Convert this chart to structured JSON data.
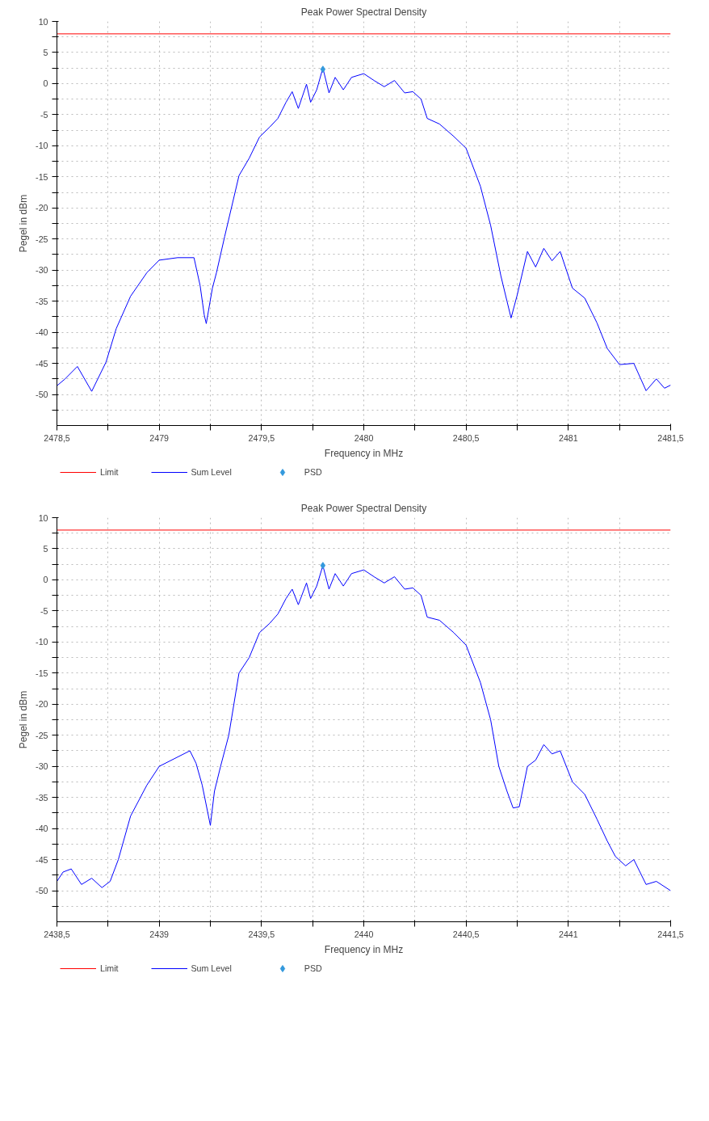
{
  "chart_data": [
    {
      "type": "line",
      "title": "Peak Power Spectral Density",
      "xlabel": "Frequency in MHz",
      "ylabel": "Pegel in dBm",
      "xlim": [
        2478.5,
        2481.5
      ],
      "ylim": [
        -55,
        10
      ],
      "xticks": [
        {
          "value": 2478.5,
          "label": "2478,5"
        },
        {
          "value": 2478.75,
          "label": null
        },
        2479,
        {
          "value": 2479.25,
          "label": null
        },
        {
          "value": 2479.5,
          "label": "2479,5"
        },
        {
          "value": 2479.75,
          "label": null
        },
        2480,
        {
          "value": 2480.25,
          "label": null
        },
        {
          "value": 2480.5,
          "label": "2480,5"
        },
        {
          "value": 2480.75,
          "label": null
        },
        2481,
        {
          "value": 2481.25,
          "label": null
        },
        {
          "value": 2481.5,
          "label": "2481,5"
        }
      ],
      "yticks": [
        10,
        {
          "value": 7.5,
          "label": null
        },
        5,
        {
          "value": 2.5,
          "label": null
        },
        0,
        {
          "value": -2.5,
          "label": null
        },
        -5,
        {
          "value": -7.5,
          "label": null
        },
        -10,
        {
          "value": -12.5,
          "label": null
        },
        -15,
        {
          "value": -17.5,
          "label": null
        },
        -20,
        {
          "value": -22.5,
          "label": null
        },
        -25,
        {
          "value": -27.5,
          "label": null
        },
        -30,
        {
          "value": -32.5,
          "label": null
        },
        -35,
        {
          "value": -37.5,
          "label": null
        },
        -40,
        {
          "value": -42.5,
          "label": null
        },
        -45,
        {
          "value": -47.5,
          "label": null
        },
        -50,
        {
          "value": -52.5,
          "label": null
        }
      ],
      "grid": true,
      "legend": "bottom",
      "series": [
        {
          "name": "Limit",
          "type": "line",
          "color": "#ff0000",
          "x": [
            2478.5,
            2481.5
          ],
          "values": [
            8,
            8
          ]
        },
        {
          "name": "Sum Level",
          "color": "#0000ff",
          "x": [
            2478.5,
            2478.54,
            2478.6,
            2478.67,
            2478.74,
            2478.79,
            2478.86,
            2478.94,
            2479.0,
            2479.09,
            2479.17,
            2479.2,
            2479.22,
            2479.23,
            2479.26,
            2479.28,
            2479.32,
            2479.39,
            2479.44,
            2479.49,
            2479.54,
            2479.58,
            2479.62,
            2479.65,
            2479.68,
            2479.72,
            2479.74,
            2479.77,
            2479.8,
            2479.83,
            2479.86,
            2479.9,
            2479.94,
            2480.0,
            2480.05,
            2480.1,
            2480.15,
            2480.2,
            2480.24,
            2480.28,
            2480.31,
            2480.37,
            2480.44,
            2480.5,
            2480.57,
            2480.62,
            2480.67,
            2480.7,
            2480.72,
            2480.75,
            2480.8,
            2480.84,
            2480.88,
            2480.92,
            2480.96,
            2481.02,
            2481.08,
            2481.14,
            2481.19,
            2481.25,
            2481.32,
            2481.38,
            2481.43,
            2481.47,
            2481.5
          ],
          "values": [
            -48.6,
            -47.5,
            -45.5,
            -49.5,
            -44.8,
            -39.4,
            -34.2,
            -30.4,
            -28.4,
            -28,
            -28,
            -32.5,
            -37.2,
            -38.6,
            -32.9,
            -30.4,
            -24.6,
            -14.8,
            -12,
            -8.6,
            -7,
            -5.6,
            -3,
            -1.3,
            -4,
            -0.1,
            -3,
            -1,
            2.5,
            -1.5,
            1,
            -1,
            1,
            1.6,
            0.5,
            -0.5,
            0.5,
            -1.5,
            -1.3,
            -2.5,
            -5.6,
            -6.5,
            -8.5,
            -10.4,
            -16.5,
            -22.8,
            -30.9,
            -35,
            -37.7,
            -34,
            -27,
            -29.5,
            -26.5,
            -28.5,
            -27,
            -32.9,
            -34.5,
            -38.5,
            -42.6,
            -45.2,
            -45,
            -49.4,
            -47.5,
            -49,
            -48.5
          ]
        },
        {
          "name": "PSD",
          "type": "scatter",
          "marker": "diamond",
          "color": "#3399dd",
          "x": [
            2479.8
          ],
          "values": [
            2.3
          ]
        }
      ]
    },
    {
      "type": "line",
      "title": "Peak Power Spectral Density",
      "xlabel": "Frequency in MHz",
      "ylabel": "Pegel in dBm",
      "xlim": [
        2438.5,
        2441.5
      ],
      "ylim": [
        -55,
        10
      ],
      "xticks": [
        {
          "value": 2438.5,
          "label": "2438,5"
        },
        {
          "value": 2438.75,
          "label": null
        },
        2439,
        {
          "value": 2439.25,
          "label": null
        },
        {
          "value": 2439.5,
          "label": "2439,5"
        },
        {
          "value": 2439.75,
          "label": null
        },
        2440,
        {
          "value": 2440.25,
          "label": null
        },
        {
          "value": 2440.5,
          "label": "2440,5"
        },
        {
          "value": 2440.75,
          "label": null
        },
        2441,
        {
          "value": 2441.25,
          "label": null
        },
        {
          "value": 2441.5,
          "label": "2441,5"
        }
      ],
      "yticks": [
        10,
        {
          "value": 7.5,
          "label": null
        },
        5,
        {
          "value": 2.5,
          "label": null
        },
        0,
        {
          "value": -2.5,
          "label": null
        },
        -5,
        {
          "value": -7.5,
          "label": null
        },
        -10,
        {
          "value": -12.5,
          "label": null
        },
        -15,
        {
          "value": -17.5,
          "label": null
        },
        -20,
        {
          "value": -22.5,
          "label": null
        },
        -25,
        {
          "value": -27.5,
          "label": null
        },
        -30,
        {
          "value": -32.5,
          "label": null
        },
        -35,
        {
          "value": -37.5,
          "label": null
        },
        -40,
        {
          "value": -42.5,
          "label": null
        },
        -45,
        {
          "value": -47.5,
          "label": null
        },
        -50,
        {
          "value": -52.5,
          "label": null
        }
      ],
      "grid": true,
      "legend": "bottom",
      "series": [
        {
          "name": "Limit",
          "type": "line",
          "color": "#ff0000",
          "x": [
            2438.5,
            2441.5
          ],
          "values": [
            8,
            8
          ]
        },
        {
          "name": "Sum Level",
          "color": "#0000ff",
          "x": [
            2438.5,
            2438.53,
            2438.57,
            2438.62,
            2438.67,
            2438.72,
            2438.76,
            2438.8,
            2438.86,
            2438.94,
            2439.0,
            2439.09,
            2439.15,
            2439.18,
            2439.21,
            2439.25,
            2439.27,
            2439.3,
            2439.34,
            2439.39,
            2439.44,
            2439.49,
            2439.54,
            2439.58,
            2439.62,
            2439.65,
            2439.68,
            2439.72,
            2439.74,
            2439.77,
            2439.8,
            2439.83,
            2439.86,
            2439.9,
            2439.94,
            2440.0,
            2440.05,
            2440.1,
            2440.15,
            2440.2,
            2440.24,
            2440.28,
            2440.31,
            2440.37,
            2440.44,
            2440.5,
            2440.57,
            2440.62,
            2440.66,
            2440.7,
            2440.73,
            2440.76,
            2440.8,
            2440.84,
            2440.88,
            2440.92,
            2440.96,
            2441.02,
            2441.08,
            2441.14,
            2441.19,
            2441.23,
            2441.28,
            2441.32,
            2441.38,
            2441.43,
            2441.5
          ],
          "values": [
            -48.5,
            -47,
            -46.5,
            -49,
            -48,
            -49.5,
            -48.5,
            -45,
            -38,
            -33,
            -30,
            -28.5,
            -27.5,
            -29.5,
            -33,
            -39.5,
            -34,
            -30,
            -25,
            -15,
            -12.5,
            -8.5,
            -7,
            -5.5,
            -3,
            -1.5,
            -4,
            -0.5,
            -3,
            -1,
            2.3,
            -1.5,
            1,
            -1,
            1,
            1.6,
            0.5,
            -0.5,
            0.5,
            -1.5,
            -1.3,
            -2.5,
            -6,
            -6.5,
            -8.5,
            -10.5,
            -16.5,
            -22.5,
            -30,
            -34,
            -36.7,
            -36.5,
            -30,
            -29,
            -26.5,
            -28,
            -27.5,
            -32.5,
            -34.5,
            -38.5,
            -42,
            -44.5,
            -46,
            -45,
            -49,
            -48.5,
            -50
          ]
        },
        {
          "name": "PSD",
          "type": "scatter",
          "marker": "diamond",
          "color": "#3399dd",
          "x": [
            2439.8
          ],
          "values": [
            2.3
          ]
        }
      ]
    }
  ]
}
